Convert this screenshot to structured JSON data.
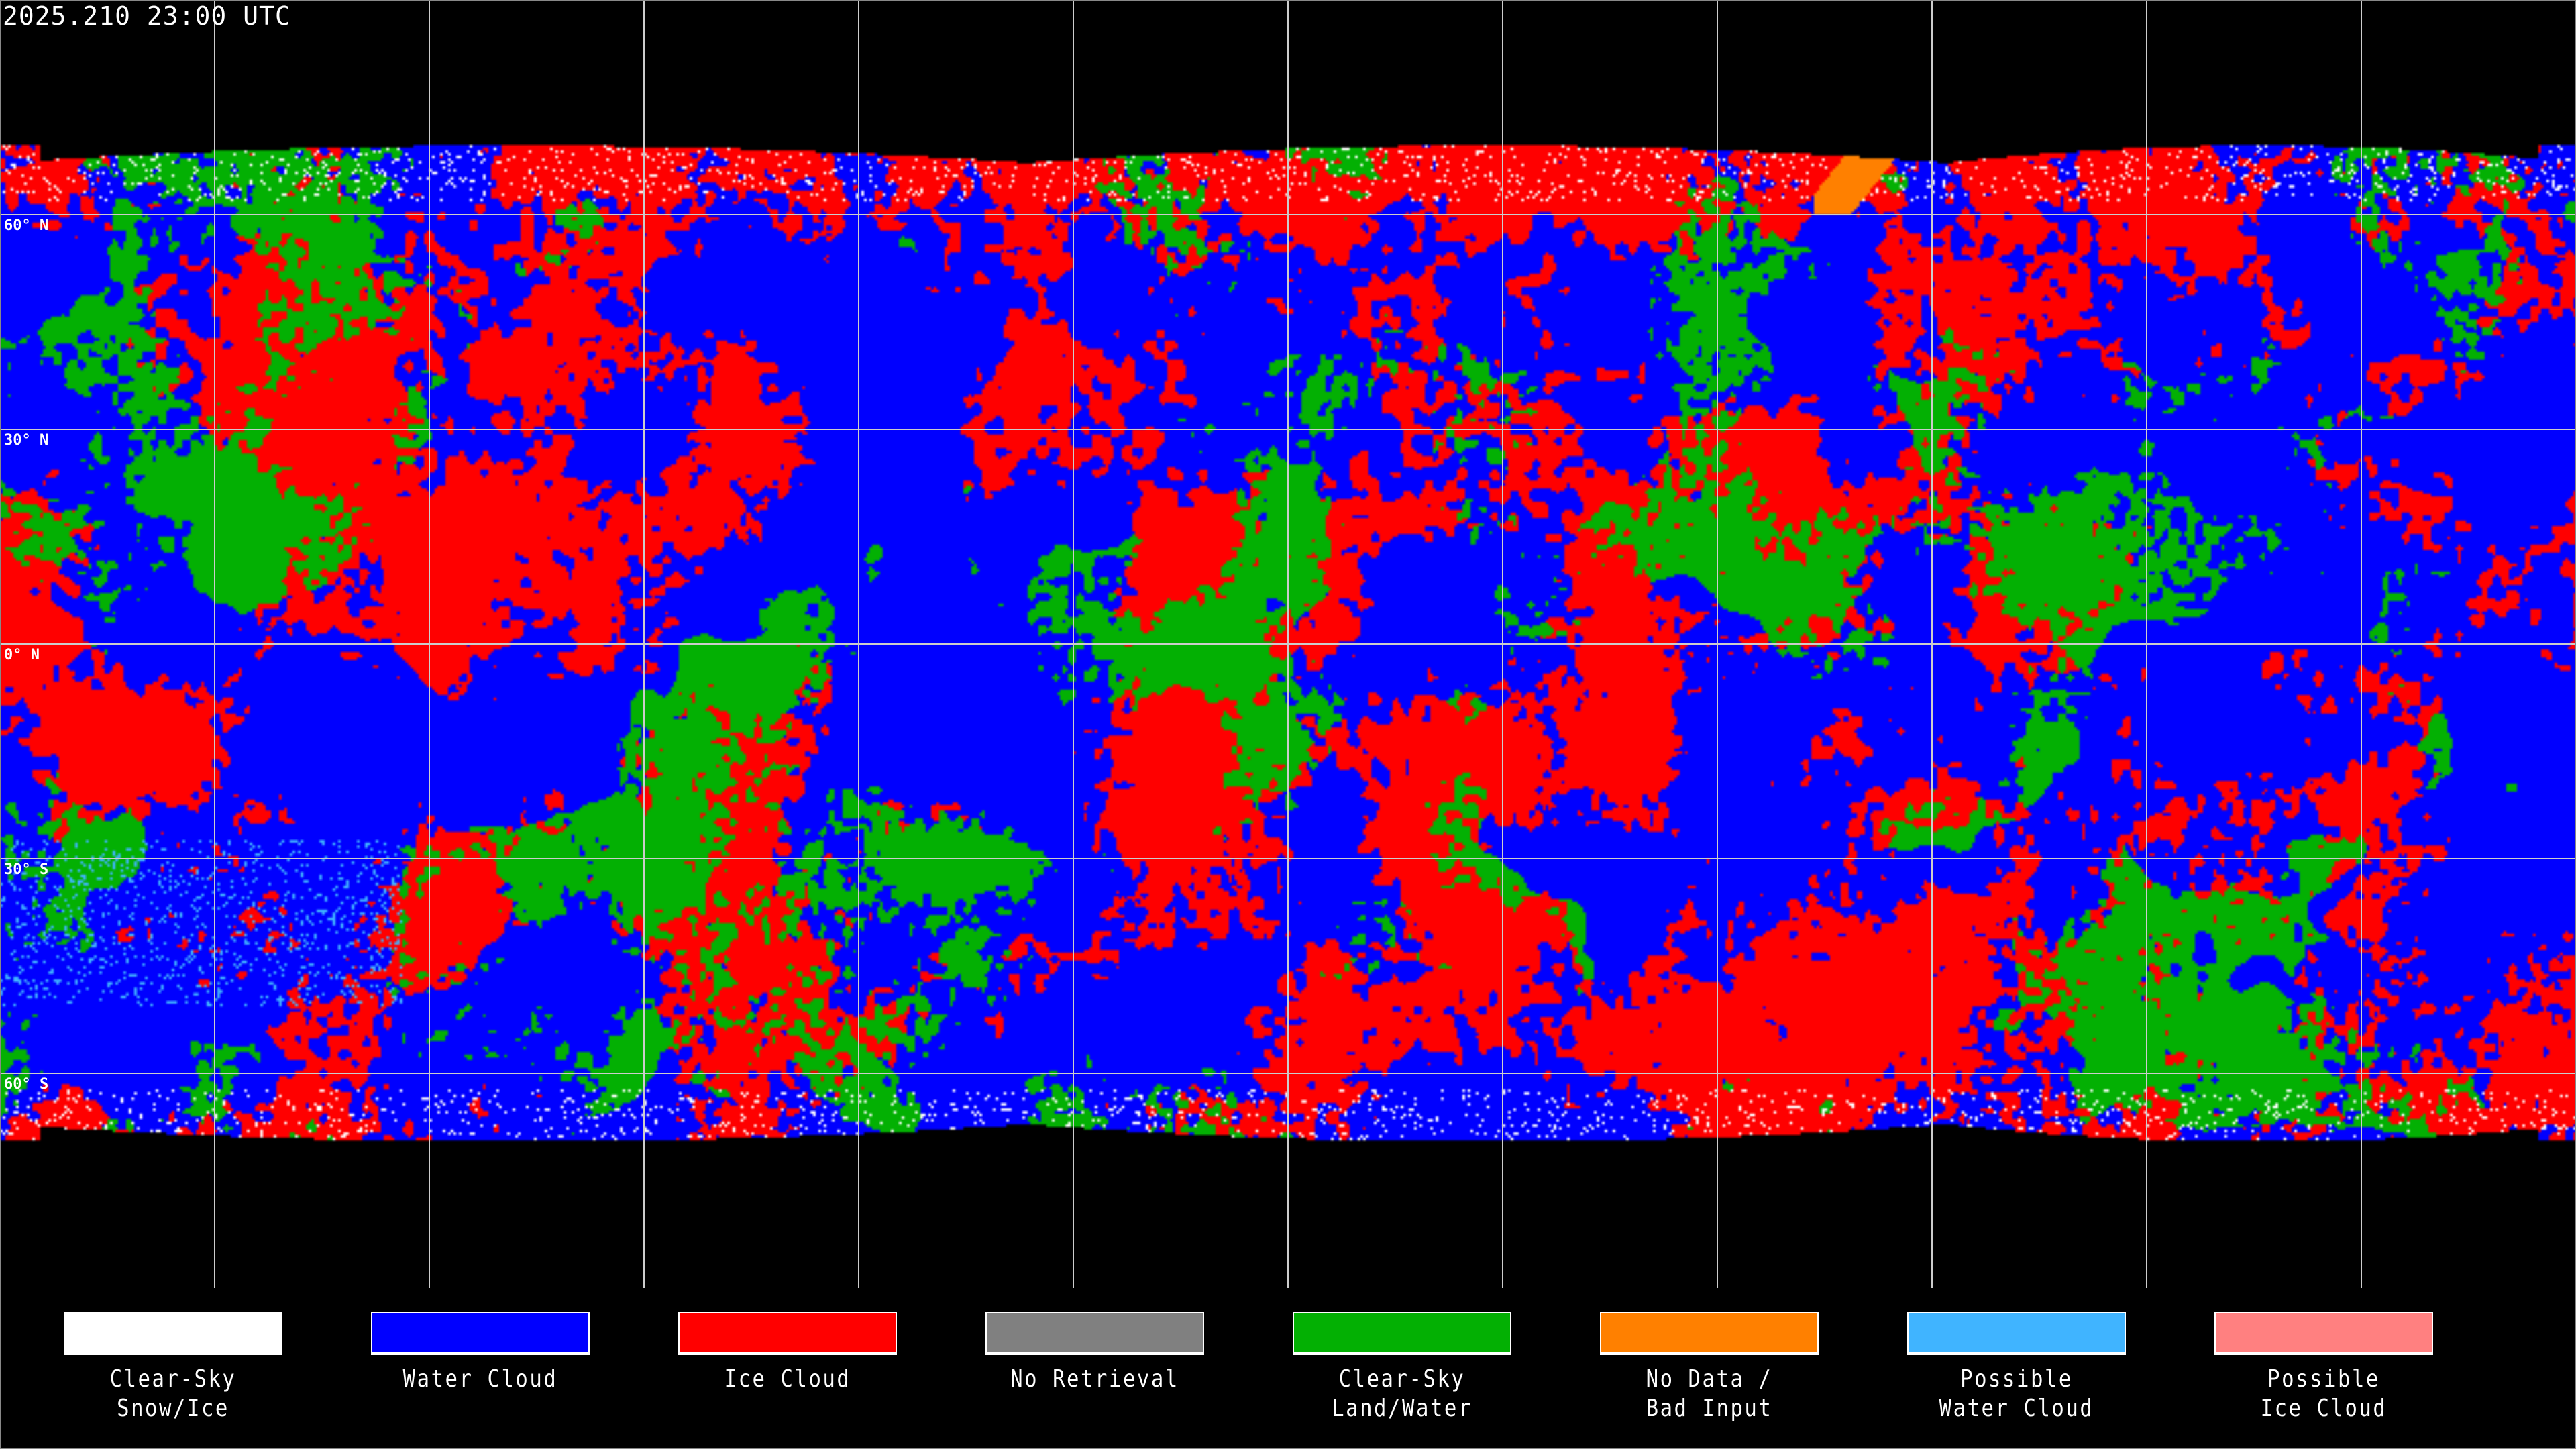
{
  "title": "2025.210 23:00 UTC",
  "latitude_labels": [
    "60° N",
    "30° N",
    "0° N",
    "30° S",
    "60° S"
  ],
  "legend": [
    {
      "line1": "Clear-Sky",
      "line2": "Snow/Ice",
      "color": "#ffffff"
    },
    {
      "line1": "Water Cloud",
      "line2": "",
      "color": "#0000ff"
    },
    {
      "line1": "Ice Cloud",
      "line2": "",
      "color": "#ff0000"
    },
    {
      "line1": "No Retrieval",
      "line2": "",
      "color": "#808080"
    },
    {
      "line1": "Clear-Sky",
      "line2": "Land/Water",
      "color": "#03b003"
    },
    {
      "line1": "No Data /",
      "line2": "Bad Input",
      "color": "#ff8000"
    },
    {
      "line1": "Possible",
      "line2": "Water Cloud",
      "color": "#40b4ff"
    },
    {
      "line1": "Possible",
      "line2": "Ice Cloud",
      "color": "#ff8080"
    }
  ]
}
